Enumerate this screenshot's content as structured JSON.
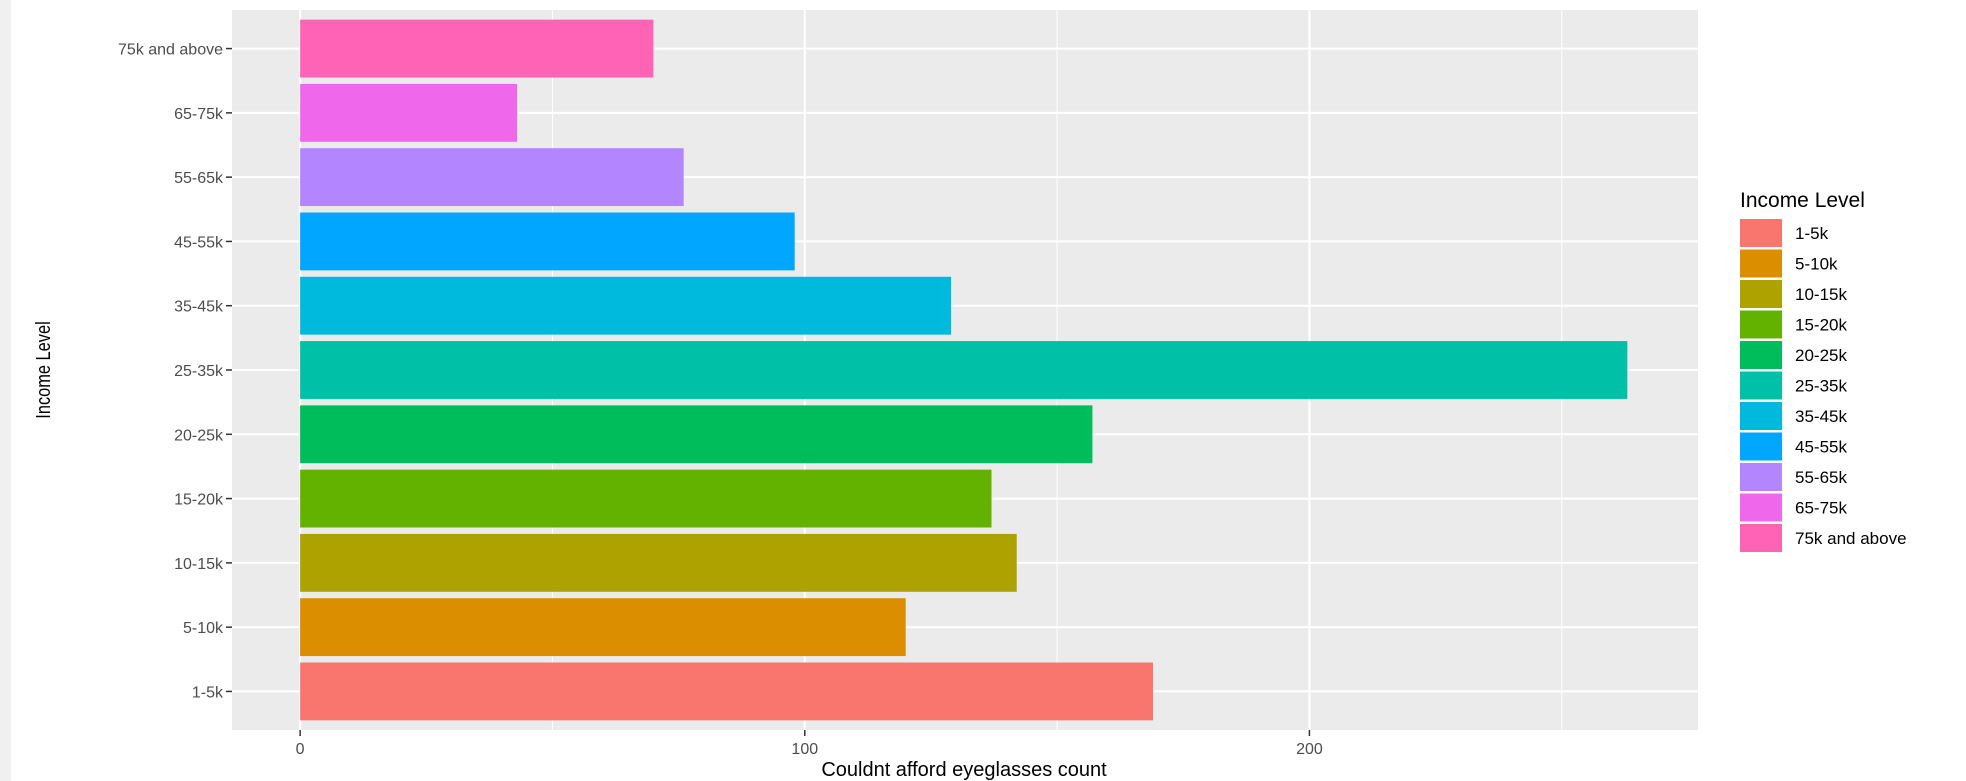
{
  "chart_data": {
    "type": "bar",
    "orientation": "horizontal",
    "categories": [
      "1-5k",
      "5-10k",
      "10-15k",
      "15-20k",
      "20-25k",
      "25-35k",
      "35-45k",
      "45-55k",
      "55-65k",
      "65-75k",
      "75k and above"
    ],
    "values": [
      169,
      120,
      142,
      137,
      157,
      263,
      129,
      98,
      76,
      43,
      70
    ],
    "colors": [
      "#F8766D",
      "#DB8E00",
      "#AEA200",
      "#64B200",
      "#00BD5C",
      "#00C1A7",
      "#00BADE",
      "#00A6FF",
      "#B385FF",
      "#EF67EB",
      "#FF63B6"
    ],
    "xlabel": "Couldnt afford eyeglasses count",
    "ylabel": "Income Level",
    "xticks": [
      0,
      100,
      200
    ],
    "xlim": [
      -13.5,
      277
    ],
    "grid": true,
    "panel_background": "#EBEBEB",
    "legend": {
      "title": "Income Level",
      "position": "right",
      "entries": [
        "1-5k",
        "5-10k",
        "10-15k",
        "15-20k",
        "20-25k",
        "25-35k",
        "35-45k",
        "45-55k",
        "55-65k",
        "65-75k",
        "75k and above"
      ]
    }
  }
}
